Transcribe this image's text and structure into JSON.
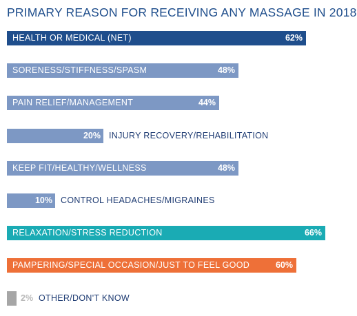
{
  "chart_data": {
    "type": "bar",
    "orientation": "horizontal",
    "title": "PRIMARY REASON FOR RECEIVING ANY MASSAGE IN 2018",
    "xlim": [
      0,
      66
    ],
    "bars": [
      {
        "label": "HEALTH OR MEDICAL (NET)",
        "value": 62,
        "value_label": "62%",
        "color": "#1f4e8c"
      },
      {
        "label": "SORENESS/STIFFNESS/SPASM",
        "value": 48,
        "value_label": "48%",
        "color": "#7d98c4"
      },
      {
        "label": "PAIN RELIEF/MANAGEMENT",
        "value": 44,
        "value_label": "44%",
        "color": "#7d98c4"
      },
      {
        "label": "INJURY RECOVERY/REHABILITATION",
        "value": 20,
        "value_label": "20%",
        "color": "#7d98c4"
      },
      {
        "label": "KEEP FIT/HEALTHY/WELLNESS",
        "value": 48,
        "value_label": "48%",
        "color": "#7d98c4"
      },
      {
        "label": "CONTROL HEADACHES/MIGRAINES",
        "value": 10,
        "value_label": "10%",
        "color": "#7d98c4"
      },
      {
        "label": "RELAXATION/STRESS REDUCTION",
        "value": 66,
        "value_label": "66%",
        "color": "#1aabb4"
      },
      {
        "label": "PAMPERING/SPECIAL OCCASION/JUST TO FEEL GOOD",
        "value": 60,
        "value_label": "60%",
        "color": "#ee7038"
      },
      {
        "label": "OTHER/DON'T KNOW",
        "value": 2,
        "value_label": "2%",
        "color": "#a6a6a6"
      }
    ]
  }
}
